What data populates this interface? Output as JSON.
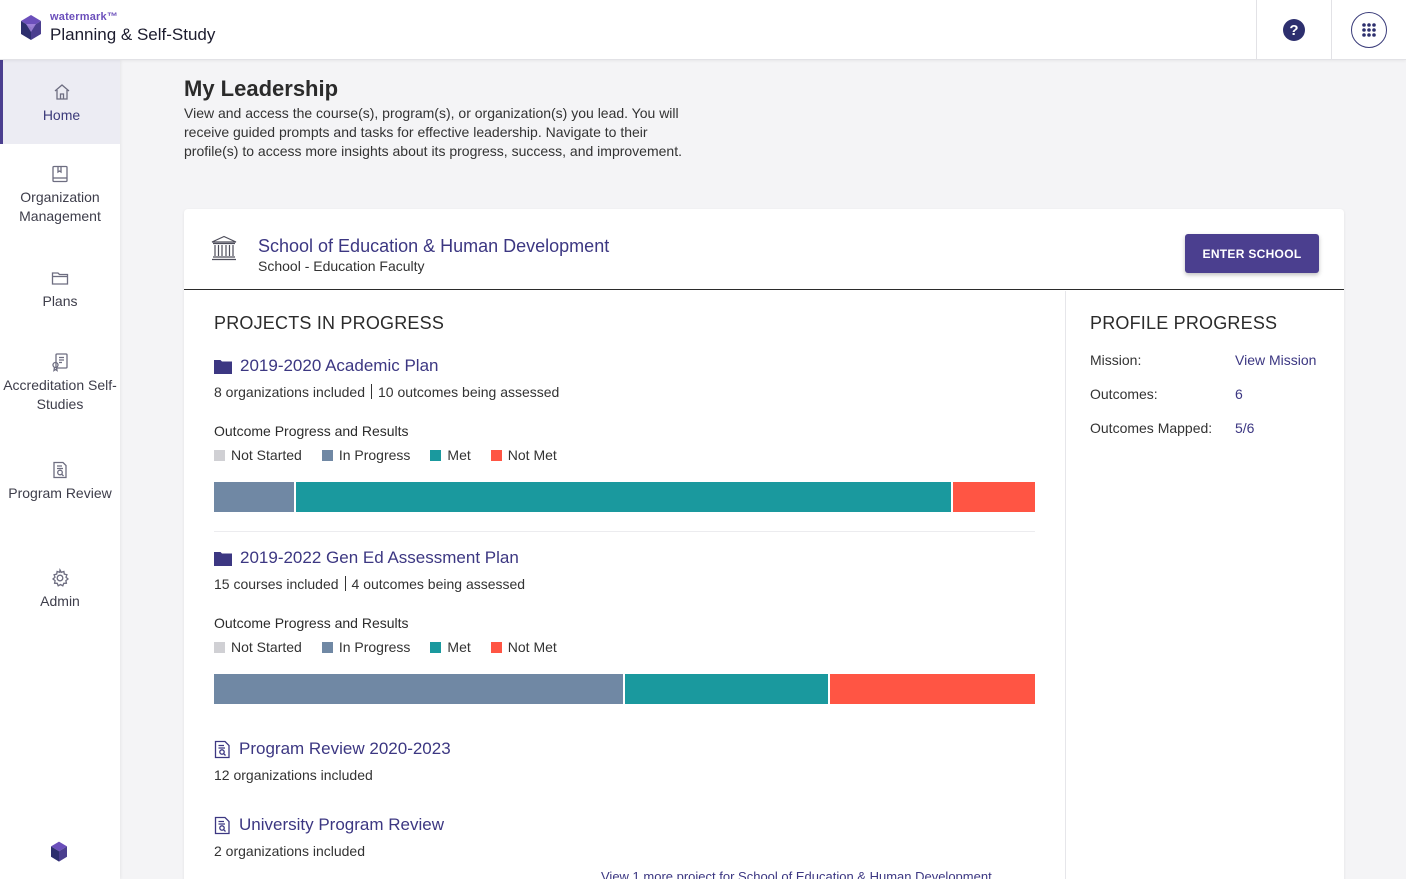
{
  "app": {
    "brand_small": "watermark™",
    "brand_name": "Planning & Self-Study",
    "help_label": "?"
  },
  "sidebar": {
    "items": [
      {
        "label": "Home",
        "icon": "home-icon",
        "active": true
      },
      {
        "label": "Organization Management",
        "icon": "book-icon"
      },
      {
        "label": "Plans",
        "icon": "folder-icon"
      },
      {
        "label": "Accreditation Self-Studies",
        "icon": "certificate-icon"
      },
      {
        "label": "Program Review",
        "icon": "document-search-icon"
      },
      {
        "label": "Admin",
        "icon": "gear-icon"
      }
    ]
  },
  "main": {
    "title": "My Leadership",
    "description": "View and access the course(s), program(s), or organization(s) you lead. You will receive guided prompts and tasks for effective leadership. Navigate to their profile(s) to access more insights about its progress, success, and improvement."
  },
  "school": {
    "name": "School of Education & Human Development",
    "subtitle": "School - Education Faculty",
    "enter_label": "ENTER SCHOOL"
  },
  "projects": {
    "title": "PROJECTS IN PROGRESS",
    "legend": [
      {
        "label": "Not Started",
        "color": "#d0d0d4"
      },
      {
        "label": "In Progress",
        "color": "#7088a4"
      },
      {
        "label": "Met",
        "color": "#1a999e"
      },
      {
        "label": "Not Met",
        "color": "#ff5544"
      }
    ],
    "items": [
      {
        "title": "2019-2020 Academic Plan",
        "meta_left": "8 organizations included",
        "meta_right": "10 outcomes being assessed",
        "progress_label": "Outcome Progress and Results",
        "progress": {
          "not_started": 0,
          "in_progress": 1,
          "met": 8,
          "not_met": 1
        }
      },
      {
        "title": "2019-2022 Gen Ed Assessment Plan",
        "meta_left": "15 courses included",
        "meta_right": "4 outcomes being assessed",
        "progress_label": "Outcome Progress and Results",
        "progress": {
          "not_started": 0,
          "in_progress": 2,
          "met": 1,
          "not_met": 1
        }
      },
      {
        "title": "Program Review 2020-2023",
        "meta_left": "12 organizations included"
      },
      {
        "title": "University Program Review",
        "meta_left": "2 organizations included"
      }
    ],
    "more_link": "View 1 more project for School of Education & Human Development"
  },
  "profile": {
    "title": "PROFILE PROGRESS",
    "rows": [
      {
        "label": "Mission:",
        "value": "View Mission"
      },
      {
        "label": "Outcomes:",
        "value": "6"
      },
      {
        "label": "Outcomes Mapped:",
        "value": "5/6"
      }
    ]
  }
}
